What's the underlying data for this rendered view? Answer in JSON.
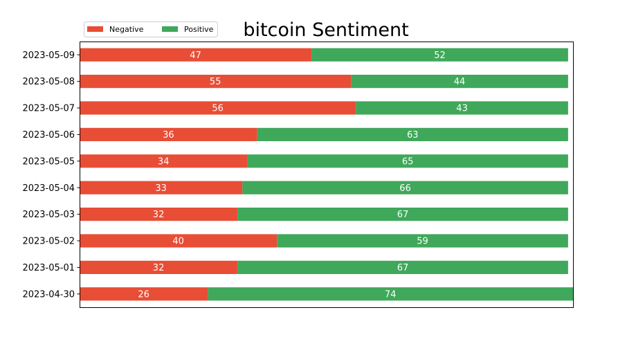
{
  "chart_data": {
    "type": "bar",
    "orientation": "horizontal",
    "stacked": true,
    "title": "bitcoin Sentiment",
    "xlabel": "",
    "ylabel": "",
    "xlim": [
      0,
      100
    ],
    "categories": [
      "2023-05-09",
      "2023-05-08",
      "2023-05-07",
      "2023-05-06",
      "2023-05-05",
      "2023-05-04",
      "2023-05-03",
      "2023-05-02",
      "2023-05-01",
      "2023-04-30"
    ],
    "series": [
      {
        "name": "Negative",
        "color": "#e84d36",
        "values": [
          47,
          55,
          56,
          36,
          34,
          33,
          32,
          40,
          32,
          26
        ]
      },
      {
        "name": "Positive",
        "color": "#3fa85a",
        "values": [
          52,
          44,
          43,
          63,
          65,
          66,
          67,
          59,
          67,
          74
        ]
      }
    ],
    "legend_position": "top-left",
    "grid": false,
    "x_axis_visible": false
  }
}
